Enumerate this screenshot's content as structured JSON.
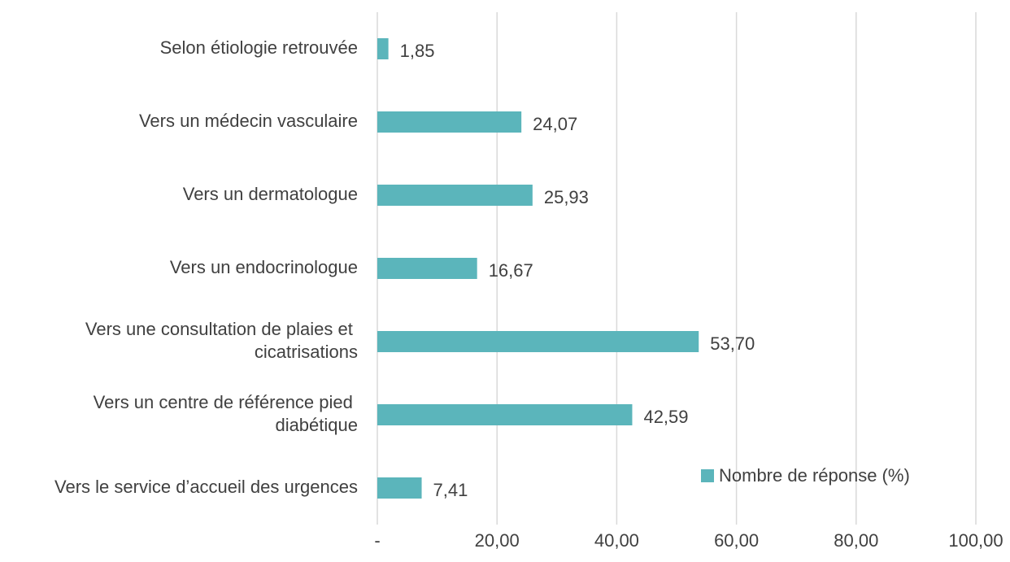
{
  "chart_data": {
    "type": "barh",
    "categories": [
      "Selon étiologie retrouvée",
      "Vers un médecin vasculaire",
      "Vers un dermatologue",
      "Vers un endocrinologue",
      "Vers une consultation de plaies et cicatrisations",
      "Vers un centre de référence pied diabétique",
      "Vers le service d’accueil des urgences"
    ],
    "series": [
      {
        "name": "Nombre de réponse (%)",
        "color": "#5bb5bb",
        "values": [
          1.85,
          24.07,
          25.93,
          16.67,
          53.7,
          42.59,
          7.41
        ],
        "value_labels": [
          "1,85",
          "24,07",
          "25,93",
          "16,67",
          "53,70",
          "42,59",
          "7,41"
        ]
      }
    ],
    "xlim": [
      0,
      100
    ],
    "xticks": [
      {
        "value": 0,
        "label": "-"
      },
      {
        "value": 20,
        "label": "20,00"
      },
      {
        "value": 40,
        "label": "40,00"
      },
      {
        "value": 60,
        "label": "60,00"
      },
      {
        "value": 80,
        "label": "80,00"
      },
      {
        "value": 100,
        "label": "100,00"
      }
    ],
    "grid": true,
    "legend": "bottom-right"
  }
}
